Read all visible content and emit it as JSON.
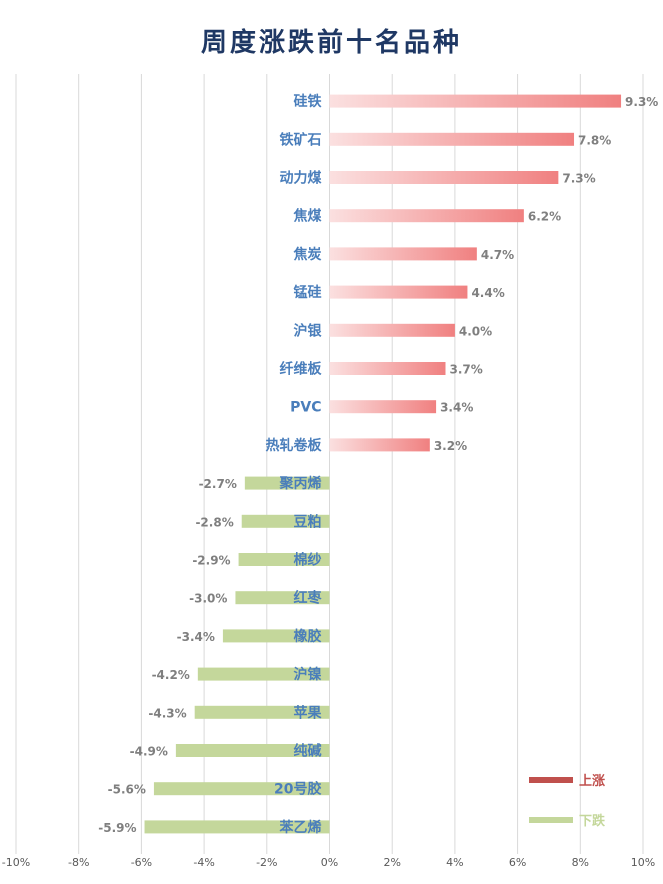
{
  "chart_data": {
    "type": "bar",
    "orientation": "horizontal",
    "title": "周度涨跌前十名品种",
    "xlabel": "",
    "ylabel": "",
    "xlim": [
      -0.1,
      0.1
    ],
    "x_ticks": [
      "-10%",
      "-8%",
      "-6%",
      "-4%",
      "-2%",
      "0%",
      "2%",
      "4%",
      "6%",
      "8%",
      "10%"
    ],
    "grid": "vertical",
    "legend_position": "bottom-right",
    "categories": [
      "硅铁",
      "铁矿石",
      "动力煤",
      "焦煤",
      "焦炭",
      "锰硅",
      "沪银",
      "纤维板",
      "PVC",
      "热轧卷板",
      "聚丙烯",
      "豆粕",
      "棉纱",
      "红枣",
      "橡胶",
      "沪镍",
      "苹果",
      "纯碱",
      "20号胶",
      "苯乙烯"
    ],
    "values": [
      0.093,
      0.078,
      0.073,
      0.062,
      0.047,
      0.044,
      0.04,
      0.037,
      0.034,
      0.032,
      -0.027,
      -0.028,
      -0.029,
      -0.03,
      -0.034,
      -0.042,
      -0.043,
      -0.049,
      -0.056,
      -0.059
    ],
    "data_labels": [
      "9.3%",
      "7.8%",
      "7.3%",
      "6.2%",
      "4.7%",
      "4.4%",
      "4.0%",
      "3.7%",
      "3.4%",
      "3.2%",
      "-2.7%",
      "-2.8%",
      "-2.9%",
      "-3.0%",
      "-3.4%",
      "-4.2%",
      "-4.3%",
      "-4.9%",
      "-5.6%",
      "-5.9%"
    ],
    "series": [
      {
        "name": "上涨",
        "color": "#c0504d",
        "categories_index": [
          0,
          9
        ]
      },
      {
        "name": "下跌",
        "color": "#c4d79b",
        "categories_index": [
          10,
          19
        ]
      }
    ],
    "colors": {
      "up_bar_start": "#fbe0e0",
      "up_bar_end": "#f08080",
      "down_bar": "#c4d79b",
      "category_label": "#4a7ebb",
      "data_label": "#7f7f7f",
      "title": "#1f3864",
      "grid": "#d9d9d9"
    }
  }
}
